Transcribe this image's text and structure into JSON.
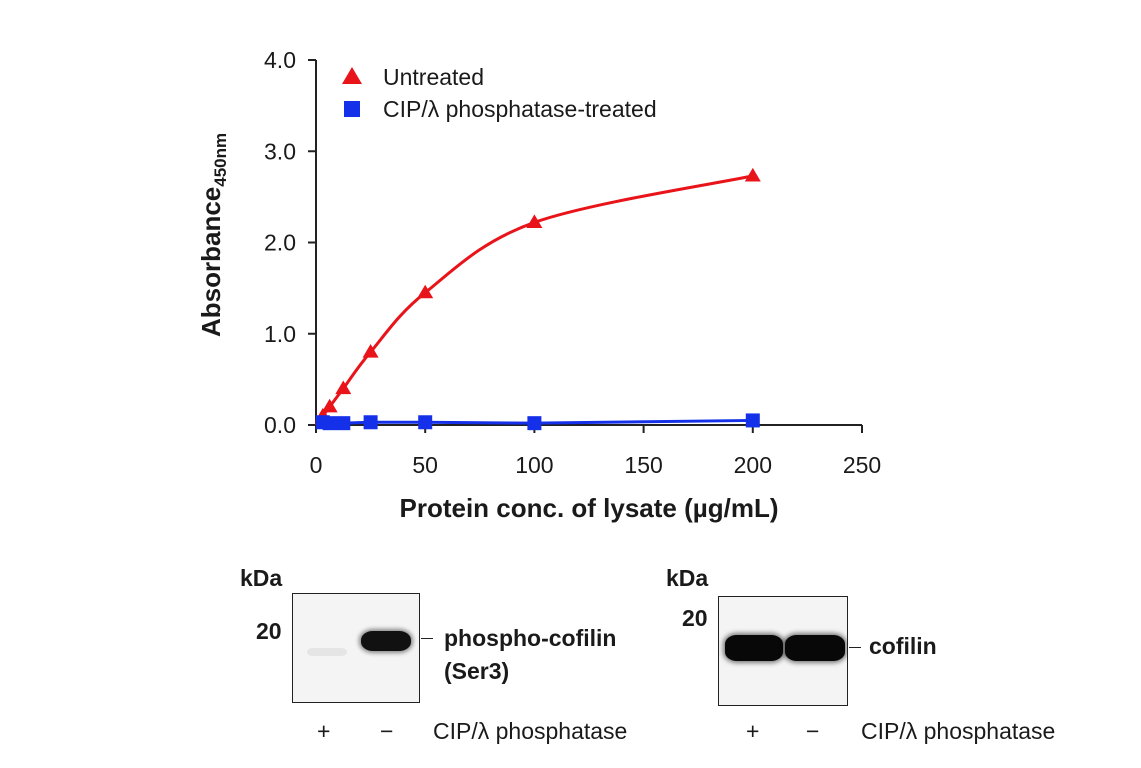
{
  "chart_data": {
    "type": "line",
    "title": "",
    "xlabel": "Protein conc. of lysate (µg/mL)",
    "ylabel_main": "Absorbance",
    "ylabel_sub": "450nm",
    "xlim": [
      0,
      250
    ],
    "ylim": [
      0,
      4
    ],
    "xticks": [
      0,
      50,
      100,
      150,
      200,
      250
    ],
    "yticks": [
      "0.0",
      "1.0",
      "2.0",
      "3.0",
      "4.0"
    ],
    "legend_position": "top-left",
    "grid": false,
    "series": [
      {
        "name": "Untreated",
        "marker": "triangle",
        "color": "#e8141a",
        "x": [
          3.125,
          6.25,
          12.5,
          25,
          50,
          100,
          200
        ],
        "y": [
          0.1,
          0.2,
          0.4,
          0.8,
          1.45,
          2.22,
          2.73
        ]
      },
      {
        "name": "CIP/λ phosphatase-treated",
        "marker": "square",
        "color": "#1430e8",
        "x": [
          3.125,
          6.25,
          12.5,
          25,
          50,
          100,
          200
        ],
        "y": [
          0.03,
          0.02,
          0.02,
          0.03,
          0.03,
          0.02,
          0.05
        ]
      }
    ]
  },
  "blots": {
    "left": {
      "kda_label": "kDa",
      "marker": "20",
      "target_line1": "phospho-cofilin",
      "target_line2": "(Ser3)",
      "lane_plus": "+",
      "lane_minus": "−",
      "treatment": "CIP/λ phosphatase"
    },
    "right": {
      "kda_label": "kDa",
      "marker": "20",
      "target_line1": "cofilin",
      "lane_plus": "+",
      "lane_minus": "−",
      "treatment": "CIP/λ phosphatase"
    }
  }
}
